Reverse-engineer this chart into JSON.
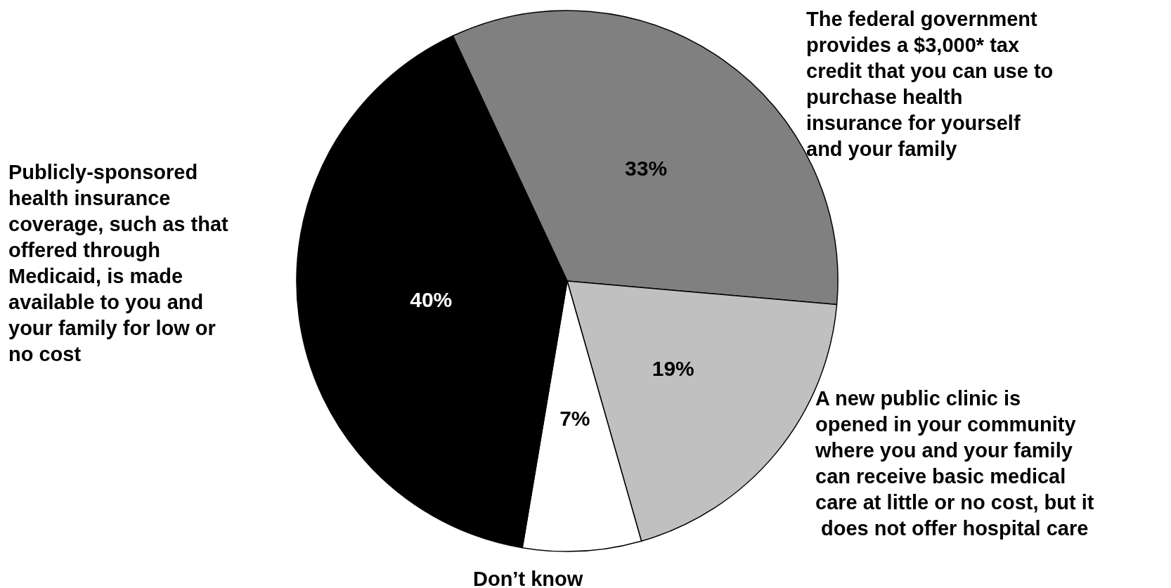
{
  "chart_data": {
    "type": "pie",
    "categories": [
      "The federal government provides a $3,000* tax credit that you can use to purchase health insurance for yourself and your family",
      "A new public clinic is opened in your community where you and your family can receive basic medical care at little or no cost, but it does not offer hospital care",
      "Don’t know",
      "Publicly-sponsored health insurance coverage, such as that offered through Medicaid, is made available to you and your family for low or no cost"
    ],
    "values": [
      33,
      19,
      7,
      40
    ],
    "value_labels": [
      "33%",
      "19%",
      "7%",
      "40%"
    ],
    "colors": [
      "#808080",
      "#c0c0c0",
      "#ffffff",
      "#000000"
    ]
  }
}
